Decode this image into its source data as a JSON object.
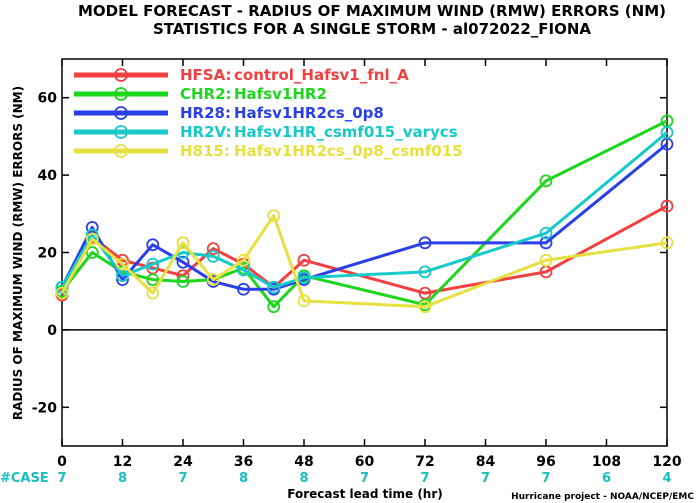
{
  "title_line1": "MODEL FORECAST - RADIUS OF MAXIMUM WIND (RMW) ERRORS (NM)",
  "title_line2": "STATISTICS FOR A SINGLE STORM - al072022_FIONA",
  "case_label": "#CASE",
  "credit": "Hurricane project - NOAA/NCEP/EMC",
  "chart_data": {
    "type": "line",
    "title": "MODEL FORECAST - RADIUS OF MAXIMUM WIND (RMW) ERRORS (NM)",
    "subtitle": "STATISTICS FOR A SINGLE STORM - al072022_FIONA",
    "xlabel": "Forecast lead time (hr)",
    "ylabel": "RADIUS OF MAXIMUM WIND (RMW) ERRORS (NM)",
    "xlim": [
      0,
      120
    ],
    "ylim": [
      -30,
      70
    ],
    "x_ticks": [
      0,
      12,
      24,
      36,
      48,
      60,
      72,
      84,
      96,
      108,
      120
    ],
    "y_ticks": [
      -20,
      0,
      20,
      40,
      60
    ],
    "case_hours": [
      0,
      12,
      24,
      36,
      48,
      60,
      72,
      84,
      96,
      108,
      120
    ],
    "case_counts": [
      "7",
      "8",
      "7",
      "8",
      "8",
      "7",
      "7",
      "7",
      "7",
      "6",
      "4"
    ],
    "legend_position": "top-left",
    "series": [
      {
        "name": "HFSA:",
        "desc": "control_Hafsv1_fnl_A",
        "color": "#f23f3f",
        "x": [
          0,
          6,
          12,
          18,
          24,
          30,
          36,
          42,
          48,
          72,
          96,
          120
        ],
        "y": [
          9,
          24,
          18,
          16,
          14,
          21,
          17,
          11,
          18,
          9.5,
          15,
          32
        ]
      },
      {
        "name": "CHR2:",
        "desc": "Hafsv1HR2",
        "color": "#1fd61f",
        "x": [
          0,
          6,
          12,
          18,
          24,
          30,
          36,
          42,
          48,
          72,
          96,
          120
        ],
        "y": [
          10,
          20,
          15,
          13,
          12.5,
          13,
          16,
          6,
          14,
          6.5,
          38.5,
          54
        ]
      },
      {
        "name": "HR28:",
        "desc": "Hafsv1HR2cs_0p8",
        "color": "#2a3fe8",
        "x": [
          0,
          6,
          12,
          18,
          24,
          30,
          36,
          42,
          48,
          72,
          96,
          120
        ],
        "y": [
          11,
          26.5,
          13,
          22,
          17.5,
          12.5,
          10.5,
          10.5,
          13,
          22.5,
          22.5,
          48
        ]
      },
      {
        "name": "HR2V:",
        "desc": "Hafsv1HR_csmf015_varycs",
        "color": "#17c9c9",
        "x": [
          0,
          6,
          12,
          18,
          24,
          30,
          36,
          42,
          48,
          72,
          96,
          120
        ],
        "y": [
          11,
          24.5,
          14,
          17,
          20,
          19,
          15.5,
          11,
          13.5,
          15,
          25,
          51
        ]
      },
      {
        "name": "H815:",
        "desc": "Hafsv1HR2cs_0p8_csmf015",
        "color": "#e6e040",
        "x": [
          0,
          6,
          12,
          18,
          24,
          30,
          36,
          42,
          48,
          72,
          96,
          120
        ],
        "y": [
          9.5,
          23.5,
          17,
          9.5,
          22.5,
          13,
          18,
          29.5,
          7.5,
          6,
          18,
          22.5
        ]
      }
    ]
  }
}
